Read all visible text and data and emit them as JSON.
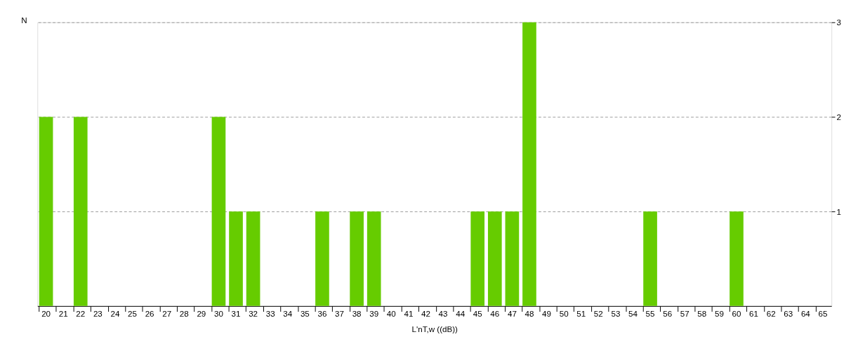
{
  "chart_data": {
    "type": "bar",
    "xlabel": "L'nT,w ((dB))",
    "ylabel": "N",
    "categories": [
      "20",
      "21",
      "22",
      "23",
      "24",
      "25",
      "26",
      "27",
      "28",
      "29",
      "30",
      "31",
      "32",
      "33",
      "34",
      "35",
      "36",
      "37",
      "38",
      "39",
      "40",
      "41",
      "42",
      "43",
      "44",
      "45",
      "46",
      "47",
      "48",
      "49",
      "50",
      "51",
      "52",
      "53",
      "54",
      "55",
      "56",
      "57",
      "58",
      "59",
      "60",
      "61",
      "62",
      "63",
      "64",
      "65"
    ],
    "values": [
      2,
      0,
      2,
      0,
      0,
      0,
      0,
      0,
      0,
      0,
      2,
      1,
      1,
      0,
      0,
      0,
      1,
      0,
      1,
      1,
      0,
      0,
      0,
      0,
      0,
      1,
      1,
      1,
      3,
      0,
      0,
      0,
      0,
      0,
      0,
      1,
      0,
      0,
      0,
      0,
      1,
      0,
      0,
      0,
      0,
      0
    ],
    "color": "#66cc00",
    "ylim": [
      0,
      3
    ],
    "yticks": [
      1,
      2,
      3
    ],
    "grid": "y"
  }
}
